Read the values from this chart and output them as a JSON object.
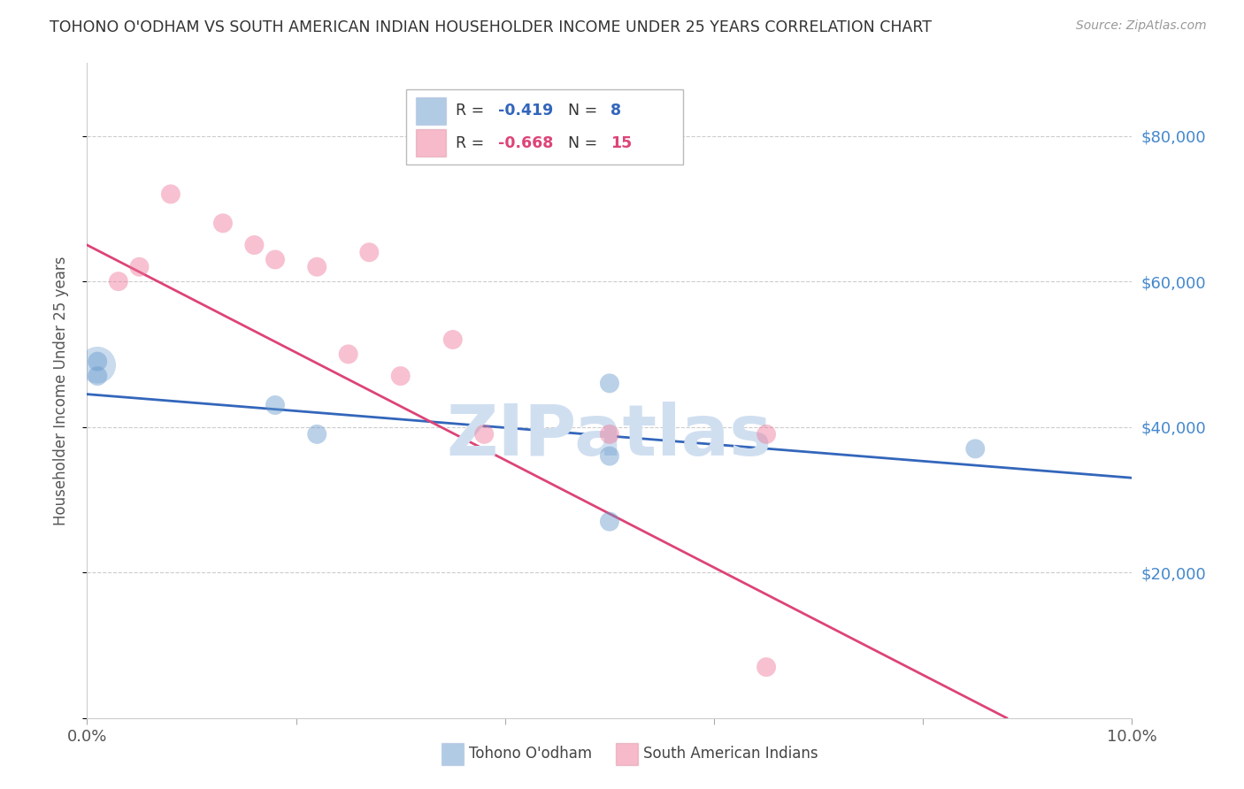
{
  "title": "TOHONO O'ODHAM VS SOUTH AMERICAN INDIAN HOUSEHOLDER INCOME UNDER 25 YEARS CORRELATION CHART",
  "source": "Source: ZipAtlas.com",
  "ylabel": "Householder Income Under 25 years",
  "watermark": "ZIPatlas",
  "xlim": [
    0.0,
    0.1
  ],
  "ylim": [
    0,
    90000
  ],
  "yticks": [
    0,
    20000,
    40000,
    60000,
    80000
  ],
  "ytick_labels": [
    "",
    "$20,000",
    "$40,000",
    "$60,000",
    "$80,000"
  ],
  "xticks": [
    0.0,
    0.02,
    0.04,
    0.06,
    0.08,
    0.1
  ],
  "xtick_labels": [
    "0.0%",
    "",
    "",
    "",
    "",
    "10.0%"
  ],
  "blue_R": "-0.419",
  "blue_N": "8",
  "pink_R": "-0.668",
  "pink_N": "15",
  "blue_label": "Tohono O'odham",
  "pink_label": "South American Indians",
  "blue_color": "#6699cc",
  "pink_color": "#ee7799",
  "blue_scatter_x": [
    0.001,
    0.001,
    0.018,
    0.022,
    0.05,
    0.05,
    0.085,
    0.05
  ],
  "blue_scatter_y": [
    49000,
    47000,
    43000,
    39000,
    46000,
    36000,
    37000,
    27000
  ],
  "pink_scatter_x": [
    0.003,
    0.005,
    0.008,
    0.013,
    0.016,
    0.018,
    0.022,
    0.025,
    0.027,
    0.03,
    0.035,
    0.038,
    0.05,
    0.065,
    0.065
  ],
  "pink_scatter_y": [
    60000,
    62000,
    72000,
    68000,
    65000,
    63000,
    62000,
    50000,
    64000,
    47000,
    52000,
    39000,
    39000,
    7000,
    39000
  ],
  "blue_trend_x0": 0.0,
  "blue_trend_y0": 44500,
  "blue_trend_x1": 0.1,
  "blue_trend_y1": 33000,
  "pink_trend_x0": 0.0,
  "pink_trend_y0": 65000,
  "pink_trend_x1": 0.088,
  "pink_trend_y1": 0,
  "background_color": "#ffffff",
  "grid_color": "#cccccc",
  "title_color": "#333333",
  "right_axis_color": "#4488cc",
  "source_color": "#999999",
  "watermark_color": "#d0dff0",
  "blue_line_color": "#3366bb",
  "pink_line_color": "#dd4477"
}
